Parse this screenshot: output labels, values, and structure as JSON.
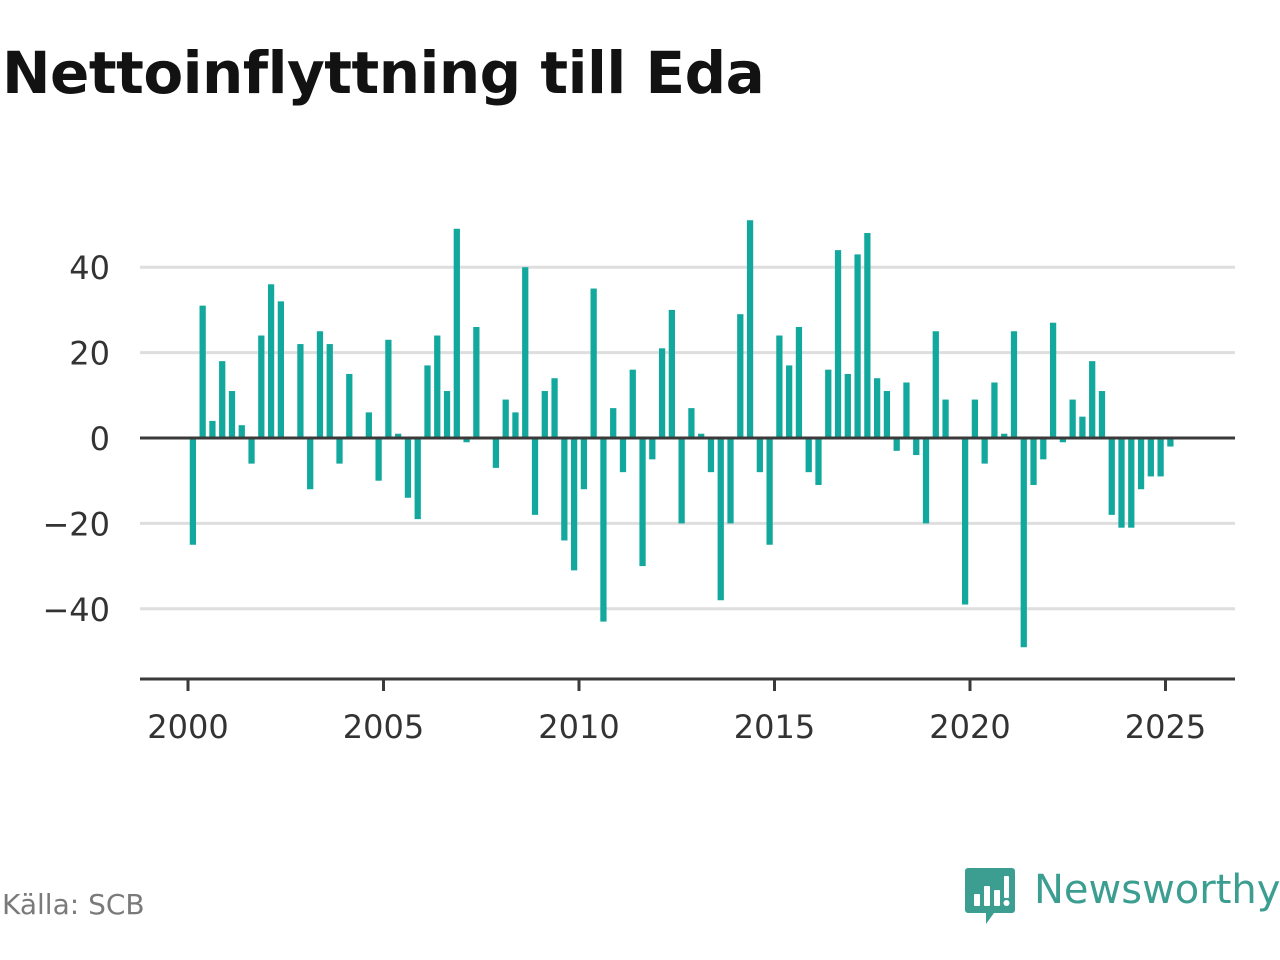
{
  "title": "Nettoinflyttning till Eda",
  "source": "Källa: SCB",
  "brand": {
    "name": "Newsworthy",
    "icon": "newsworthy-logo-icon",
    "color": "#3b9e91"
  },
  "chart_data": {
    "type": "bar",
    "title": "Nettoinflyttning till Eda",
    "xlabel": "",
    "ylabel": "",
    "frequency": "quarterly",
    "bar_color": "#13a89e",
    "xlim": [
      1998.8,
      2026.8
    ],
    "ylim": [
      -56,
      56
    ],
    "x_ticks": [
      2000,
      2005,
      2010,
      2015,
      2020,
      2025
    ],
    "x_tick_labels": [
      "2000",
      "2005",
      "2010",
      "2015",
      "2020",
      "2025"
    ],
    "y_ticks": [
      40,
      20,
      0,
      -20,
      -40
    ],
    "y_tick_labels": [
      "40",
      "20",
      "0",
      "−20",
      "−40"
    ],
    "grid": "horizontal",
    "legend": "none",
    "categories": [
      "2000 Q1",
      "2000 Q2",
      "2000 Q3",
      "2000 Q4",
      "2001 Q1",
      "2001 Q2",
      "2001 Q3",
      "2001 Q4",
      "2002 Q1",
      "2002 Q2",
      "2002 Q3",
      "2002 Q4",
      "2003 Q1",
      "2003 Q2",
      "2003 Q3",
      "2003 Q4",
      "2004 Q1",
      "2004 Q2",
      "2004 Q3",
      "2004 Q4",
      "2005 Q1",
      "2005 Q2",
      "2005 Q3",
      "2005 Q4",
      "2006 Q1",
      "2006 Q2",
      "2006 Q3",
      "2006 Q4",
      "2007 Q1",
      "2007 Q2",
      "2007 Q3",
      "2007 Q4",
      "2008 Q1",
      "2008 Q2",
      "2008 Q3",
      "2008 Q4",
      "2009 Q1",
      "2009 Q2",
      "2009 Q3",
      "2009 Q4",
      "2010 Q1",
      "2010 Q2",
      "2010 Q3",
      "2010 Q4",
      "2011 Q1",
      "2011 Q2",
      "2011 Q3",
      "2011 Q4",
      "2012 Q1",
      "2012 Q2",
      "2012 Q3",
      "2012 Q4",
      "2013 Q1",
      "2013 Q2",
      "2013 Q3",
      "2013 Q4",
      "2014 Q1",
      "2014 Q2",
      "2014 Q3",
      "2014 Q4",
      "2015 Q1",
      "2015 Q2",
      "2015 Q3",
      "2015 Q4",
      "2016 Q1",
      "2016 Q2",
      "2016 Q3",
      "2016 Q4",
      "2017 Q1",
      "2017 Q2",
      "2017 Q3",
      "2017 Q4",
      "2018 Q1",
      "2018 Q2",
      "2018 Q3",
      "2018 Q4",
      "2019 Q1",
      "2019 Q2",
      "2019 Q3",
      "2019 Q4",
      "2020 Q1",
      "2020 Q2",
      "2020 Q3",
      "2020 Q4",
      "2021 Q1",
      "2021 Q2",
      "2021 Q3",
      "2021 Q4",
      "2022 Q1",
      "2022 Q2",
      "2022 Q3",
      "2022 Q4",
      "2023 Q1",
      "2023 Q2",
      "2023 Q3",
      "2023 Q4",
      "2024 Q1",
      "2024 Q2",
      "2024 Q3",
      "2024 Q4",
      "2025 Q1"
    ],
    "x": [
      2000.125,
      2000.375,
      2000.625,
      2000.875,
      2001.125,
      2001.375,
      2001.625,
      2001.875,
      2002.125,
      2002.375,
      2002.625,
      2002.875,
      2003.125,
      2003.375,
      2003.625,
      2003.875,
      2004.125,
      2004.375,
      2004.625,
      2004.875,
      2005.125,
      2005.375,
      2005.625,
      2005.875,
      2006.125,
      2006.375,
      2006.625,
      2006.875,
      2007.125,
      2007.375,
      2007.625,
      2007.875,
      2008.125,
      2008.375,
      2008.625,
      2008.875,
      2009.125,
      2009.375,
      2009.625,
      2009.875,
      2010.125,
      2010.375,
      2010.625,
      2010.875,
      2011.125,
      2011.375,
      2011.625,
      2011.875,
      2012.125,
      2012.375,
      2012.625,
      2012.875,
      2013.125,
      2013.375,
      2013.625,
      2013.875,
      2014.125,
      2014.375,
      2014.625,
      2014.875,
      2015.125,
      2015.375,
      2015.625,
      2015.875,
      2016.125,
      2016.375,
      2016.625,
      2016.875,
      2017.125,
      2017.375,
      2017.625,
      2017.875,
      2018.125,
      2018.375,
      2018.625,
      2018.875,
      2019.125,
      2019.375,
      2019.625,
      2019.875,
      2020.125,
      2020.375,
      2020.625,
      2020.875,
      2021.125,
      2021.375,
      2021.625,
      2021.875,
      2022.125,
      2022.375,
      2022.625,
      2022.875,
      2023.125,
      2023.375,
      2023.625,
      2023.875,
      2024.125,
      2024.375,
      2024.625,
      2024.875,
      2025.125
    ],
    "values": [
      -25,
      31,
      4,
      18,
      11,
      3,
      -6,
      24,
      36,
      32,
      0,
      22,
      -12,
      25,
      22,
      -6,
      15,
      0,
      6,
      -10,
      23,
      1,
      -14,
      -19,
      17,
      24,
      11,
      49,
      -1,
      26,
      0,
      -7,
      9,
      6,
      40,
      -18,
      11,
      14,
      -24,
      -31,
      -12,
      35,
      -43,
      7,
      -8,
      16,
      -30,
      -5,
      21,
      30,
      -20,
      7,
      1,
      -8,
      -38,
      -20,
      29,
      51,
      -8,
      -25,
      24,
      17,
      26,
      -8,
      -11,
      16,
      44,
      15,
      43,
      48,
      14,
      11,
      -3,
      13,
      -4,
      -20,
      25,
      9,
      0,
      -39,
      9,
      -6,
      13,
      1,
      25,
      -49,
      -11,
      -5,
      27,
      -1,
      9,
      5,
      18,
      11,
      -18,
      -21,
      -21,
      -12,
      -9,
      -9,
      -2
    ]
  }
}
